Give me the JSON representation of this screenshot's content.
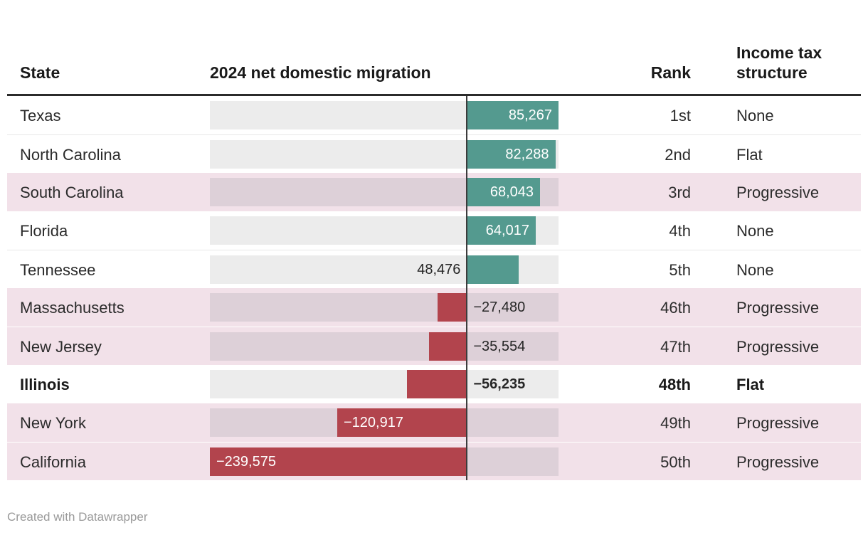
{
  "header": {
    "state": "State",
    "migration": "2024 net domestic migration",
    "rank": "Rank",
    "income": "Income tax\nstructure"
  },
  "footer": {
    "credit": "Created with Datawrapper"
  },
  "colors": {
    "positive_bar": "#549a8f",
    "negative_bar": "#b2444d",
    "track_default": "#ececec",
    "track_highlight": "#ddd0d8",
    "row_highlight": "#f2e1e9",
    "zero_line": "#3c3c3c",
    "header_rule": "#2b2b2b",
    "bar_label_inside": "#ffffff",
    "bar_label_outside": "#262626"
  },
  "rows": [
    {
      "state": "Texas",
      "value": 85267,
      "value_label": "85,267",
      "rank": "1st",
      "income": "None",
      "highlight": false,
      "bold": false
    },
    {
      "state": "North Carolina",
      "value": 82288,
      "value_label": "82,288",
      "rank": "2nd",
      "income": "Flat",
      "highlight": false,
      "bold": false
    },
    {
      "state": "South Carolina",
      "value": 68043,
      "value_label": "68,043",
      "rank": "3rd",
      "income": "Progressive",
      "highlight": true,
      "bold": false
    },
    {
      "state": "Florida",
      "value": 64017,
      "value_label": "64,017",
      "rank": "4th",
      "income": "None",
      "highlight": false,
      "bold": false
    },
    {
      "state": "Tennessee",
      "value": 48476,
      "value_label": "48,476",
      "rank": "5th",
      "income": "None",
      "highlight": false,
      "bold": false
    },
    {
      "state": "Massachusetts",
      "value": -27480,
      "value_label": "−27,480",
      "rank": "46th",
      "income": "Progressive",
      "highlight": true,
      "bold": false
    },
    {
      "state": "New Jersey",
      "value": -35554,
      "value_label": "−35,554",
      "rank": "47th",
      "income": "Progressive",
      "highlight": true,
      "bold": false
    },
    {
      "state": "Illinois",
      "value": -56235,
      "value_label": "−56,235",
      "rank": "48th",
      "income": "Flat",
      "highlight": false,
      "bold": true
    },
    {
      "state": "New York",
      "value": -120917,
      "value_label": "−120,917",
      "rank": "49th",
      "income": "Progressive",
      "highlight": true,
      "bold": false
    },
    {
      "state": "California",
      "value": -239575,
      "value_label": "−239,575",
      "rank": "50th",
      "income": "Progressive",
      "highlight": true,
      "bold": false
    }
  ],
  "chart_data": {
    "type": "bar",
    "orientation": "horizontal",
    "title": "2024 net domestic migration",
    "columns": [
      "State",
      "2024 net domestic migration",
      "Rank",
      "Income tax structure"
    ],
    "categories": [
      "Texas",
      "North Carolina",
      "South Carolina",
      "Florida",
      "Tennessee",
      "Massachusetts",
      "New Jersey",
      "Illinois",
      "New York",
      "California"
    ],
    "values": [
      85267,
      82288,
      68043,
      64017,
      48476,
      -27480,
      -35554,
      -56235,
      -120917,
      -239575
    ],
    "rank": [
      "1st",
      "2nd",
      "3rd",
      "4th",
      "5th",
      "46th",
      "47th",
      "48th",
      "49th",
      "50th"
    ],
    "income_tax_structure": [
      "None",
      "Flat",
      "Progressive",
      "None",
      "None",
      "Progressive",
      "Progressive",
      "Flat",
      "Progressive",
      "Progressive"
    ],
    "xlim": [
      -239575,
      85267
    ],
    "grid": false,
    "legend": false,
    "highlighted_rows": [
      "South Carolina",
      "Massachusetts",
      "New Jersey",
      "New York",
      "California"
    ],
    "bold_row": "Illinois",
    "credit": "Created with Datawrapper"
  }
}
